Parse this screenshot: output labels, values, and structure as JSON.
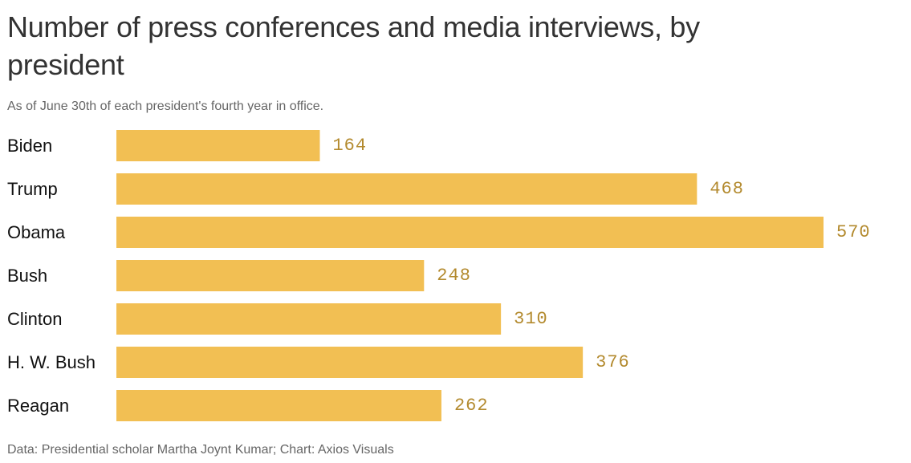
{
  "header": {
    "title": "Number of press conferences and media interviews, by president",
    "subtitle": "As of June 30th of each president's fourth year in office."
  },
  "footer": {
    "source": "Data: Presidential scholar Martha Joynt Kumar; Chart: Axios Visuals"
  },
  "colors": {
    "bar": "#f2bf53",
    "value_label": "#b38a2e"
  },
  "chart_data": {
    "type": "bar",
    "orientation": "horizontal",
    "title": "Number of press conferences and media interviews, by president",
    "subtitle": "As of June 30th of each president's fourth year in office.",
    "categories": [
      "Biden",
      "Trump",
      "Obama",
      "Bush",
      "Clinton",
      "H. W. Bush",
      "Reagan"
    ],
    "values": [
      164,
      468,
      570,
      248,
      310,
      376,
      262
    ],
    "xlim": [
      0,
      570
    ],
    "grid": false,
    "legend": "none"
  }
}
